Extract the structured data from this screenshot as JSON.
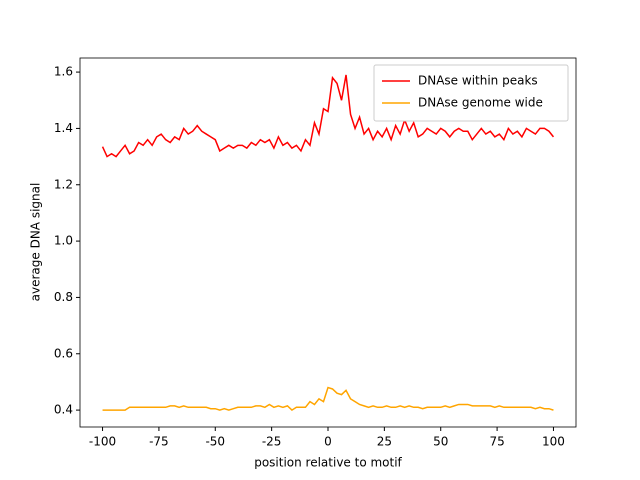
{
  "chart_data": {
    "type": "line",
    "xlabel": "position relative to motif",
    "ylabel": "average DNA signal",
    "x": [
      -100,
      -98,
      -96,
      -94,
      -92,
      -90,
      -88,
      -86,
      -84,
      -82,
      -80,
      -78,
      -76,
      -74,
      -72,
      -70,
      -68,
      -66,
      -64,
      -62,
      -60,
      -58,
      -56,
      -54,
      -52,
      -50,
      -48,
      -46,
      -44,
      -42,
      -40,
      -38,
      -36,
      -34,
      -32,
      -30,
      -28,
      -26,
      -24,
      -22,
      -20,
      -18,
      -16,
      -14,
      -12,
      -10,
      -8,
      -6,
      -4,
      -2,
      0,
      2,
      4,
      6,
      8,
      10,
      12,
      14,
      16,
      18,
      20,
      22,
      24,
      26,
      28,
      30,
      32,
      34,
      36,
      38,
      40,
      42,
      44,
      46,
      48,
      50,
      52,
      54,
      56,
      58,
      60,
      62,
      64,
      66,
      68,
      70,
      72,
      74,
      76,
      78,
      80,
      82,
      84,
      86,
      88,
      90,
      92,
      94,
      96,
      98,
      100
    ],
    "series": [
      {
        "name": "DNAse within peaks",
        "color": "#ff0000",
        "values": [
          1.335,
          1.3,
          1.31,
          1.3,
          1.32,
          1.34,
          1.31,
          1.32,
          1.35,
          1.34,
          1.36,
          1.34,
          1.37,
          1.38,
          1.36,
          1.35,
          1.37,
          1.36,
          1.4,
          1.38,
          1.39,
          1.41,
          1.39,
          1.38,
          1.37,
          1.36,
          1.32,
          1.33,
          1.34,
          1.33,
          1.34,
          1.34,
          1.33,
          1.35,
          1.34,
          1.36,
          1.35,
          1.36,
          1.33,
          1.37,
          1.34,
          1.35,
          1.33,
          1.34,
          1.32,
          1.36,
          1.34,
          1.42,
          1.38,
          1.47,
          1.46,
          1.58,
          1.56,
          1.5,
          1.59,
          1.45,
          1.4,
          1.44,
          1.38,
          1.4,
          1.36,
          1.39,
          1.37,
          1.4,
          1.36,
          1.41,
          1.38,
          1.43,
          1.39,
          1.42,
          1.37,
          1.38,
          1.4,
          1.39,
          1.38,
          1.4,
          1.39,
          1.37,
          1.39,
          1.4,
          1.39,
          1.39,
          1.36,
          1.38,
          1.4,
          1.38,
          1.39,
          1.37,
          1.38,
          1.36,
          1.4,
          1.38,
          1.39,
          1.37,
          1.4,
          1.39,
          1.38,
          1.4,
          1.4,
          1.39,
          1.37
        ]
      },
      {
        "name": "DNAse genome wide",
        "color": "#ffa500",
        "values": [
          0.4,
          0.4,
          0.4,
          0.4,
          0.4,
          0.4,
          0.41,
          0.41,
          0.41,
          0.41,
          0.41,
          0.41,
          0.41,
          0.41,
          0.41,
          0.415,
          0.415,
          0.41,
          0.415,
          0.41,
          0.41,
          0.41,
          0.41,
          0.41,
          0.405,
          0.405,
          0.4,
          0.405,
          0.4,
          0.405,
          0.41,
          0.41,
          0.41,
          0.41,
          0.415,
          0.415,
          0.41,
          0.42,
          0.41,
          0.415,
          0.41,
          0.415,
          0.4,
          0.41,
          0.41,
          0.41,
          0.43,
          0.42,
          0.44,
          0.43,
          0.48,
          0.475,
          0.46,
          0.455,
          0.47,
          0.44,
          0.43,
          0.42,
          0.415,
          0.41,
          0.415,
          0.41,
          0.41,
          0.415,
          0.41,
          0.41,
          0.415,
          0.41,
          0.415,
          0.41,
          0.41,
          0.405,
          0.41,
          0.41,
          0.41,
          0.41,
          0.415,
          0.41,
          0.415,
          0.42,
          0.42,
          0.42,
          0.415,
          0.415,
          0.415,
          0.415,
          0.415,
          0.41,
          0.415,
          0.41,
          0.41,
          0.41,
          0.41,
          0.41,
          0.41,
          0.41,
          0.405,
          0.41,
          0.405,
          0.405,
          0.4
        ]
      }
    ],
    "xlim": [
      -110,
      110
    ],
    "xticks": [
      -100,
      -75,
      -50,
      -25,
      0,
      25,
      50,
      75,
      100
    ],
    "ylim": [
      0.34,
      1.65
    ],
    "yticks": [
      0.4,
      0.6,
      0.8,
      {
        "value": 1,
        "label": "1.0"
      },
      1.2,
      1.4,
      1.6
    ],
    "legend": "upper right",
    "grid": false
  }
}
